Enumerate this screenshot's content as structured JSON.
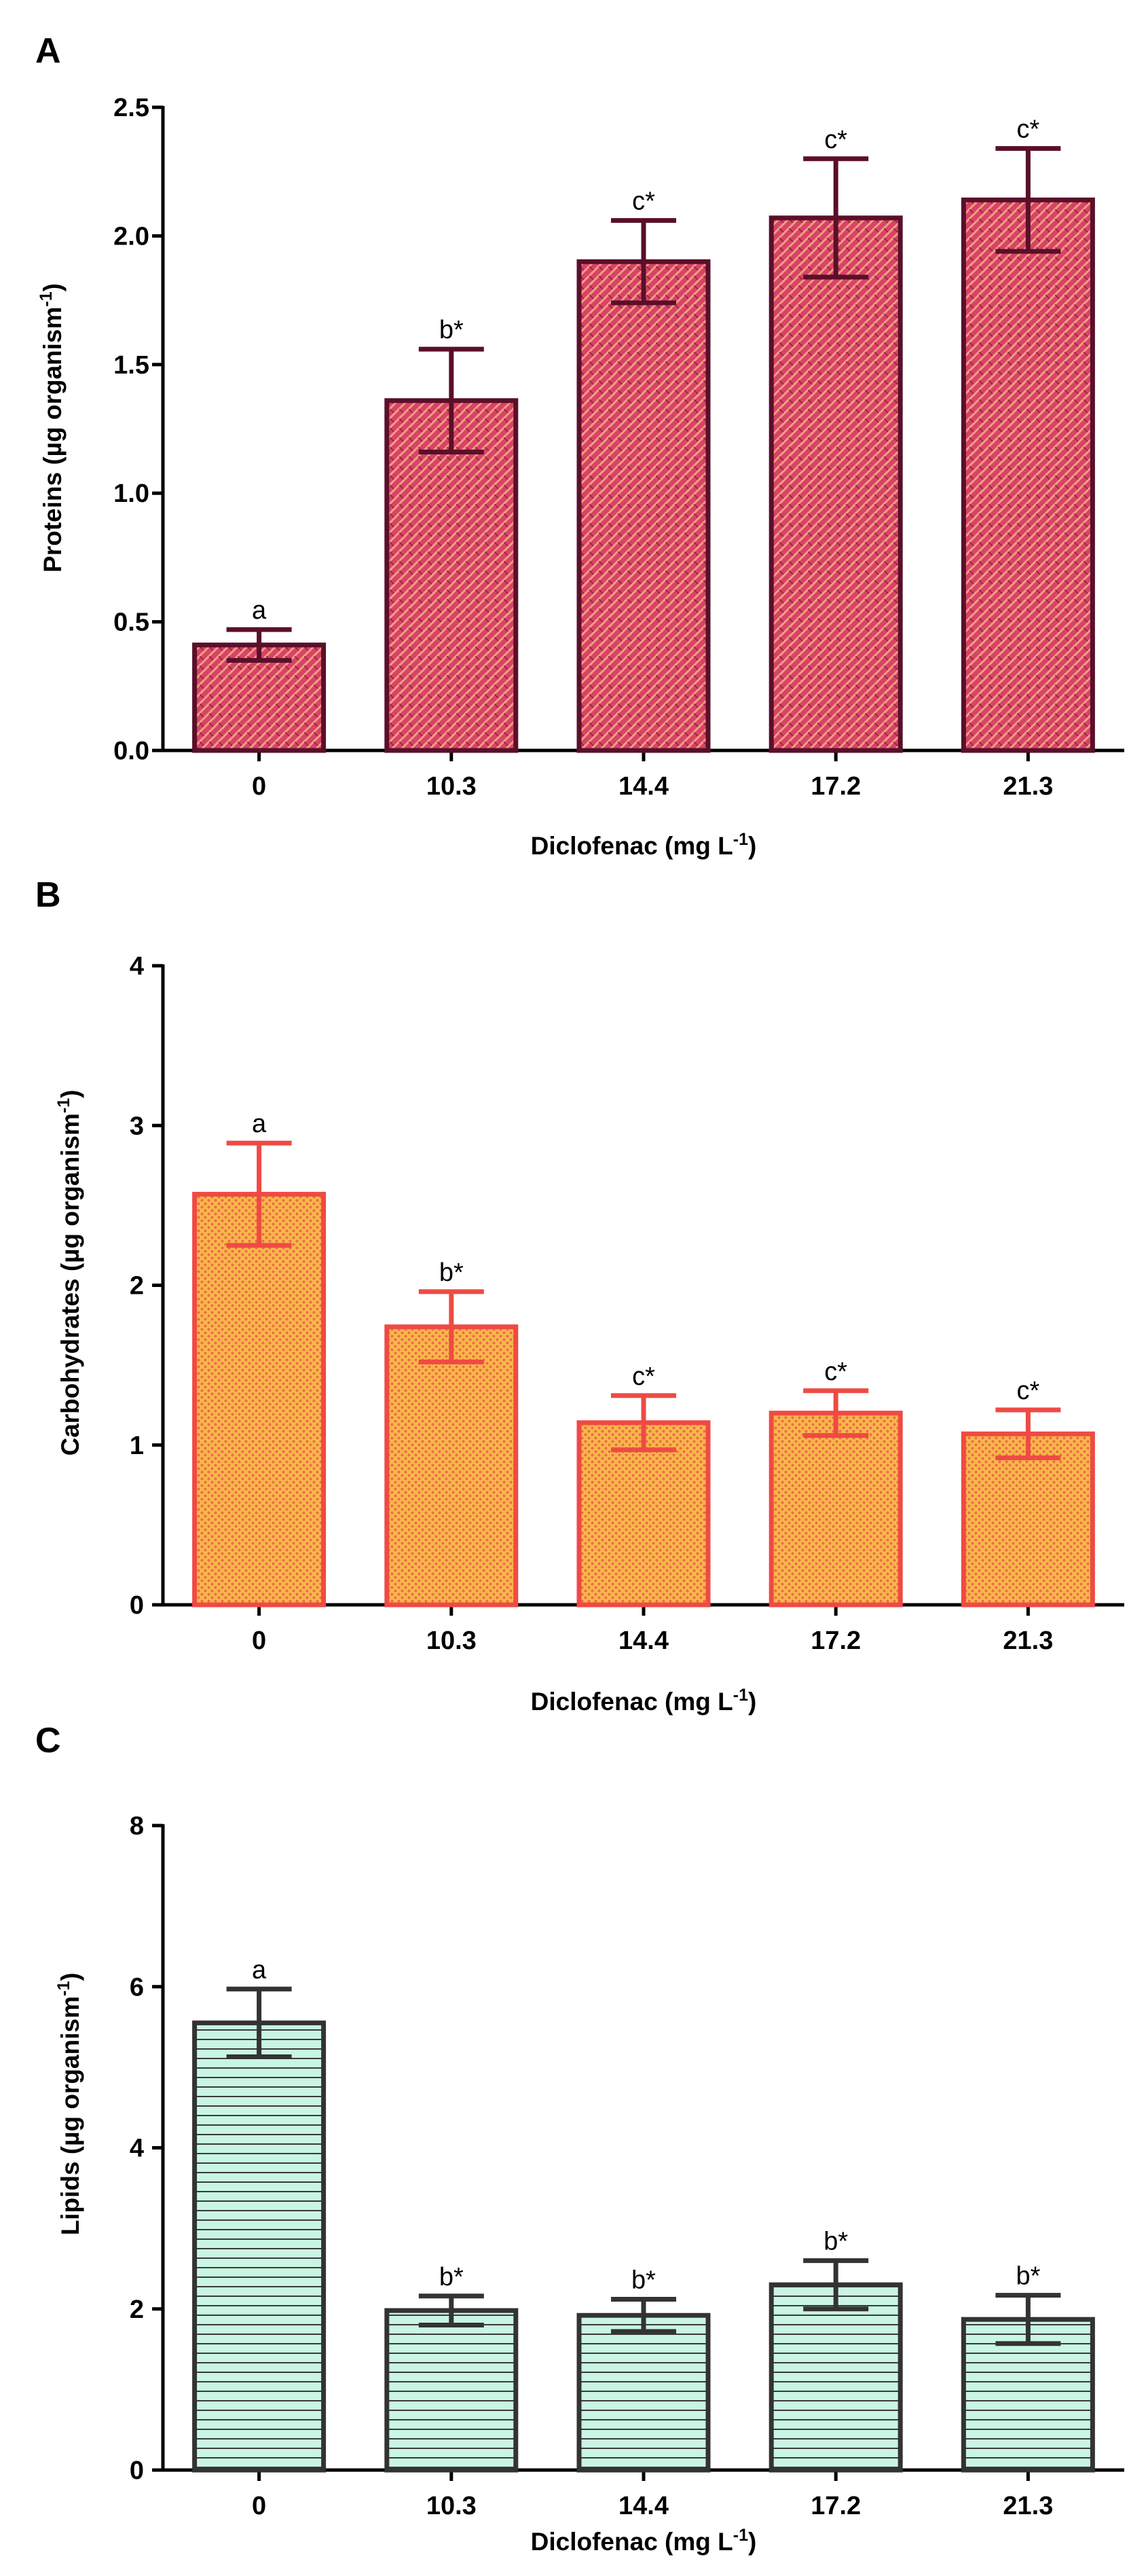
{
  "chart_data": [
    {
      "panel_label": "A",
      "type": "bar",
      "title": "",
      "xlabel": "Diclofenac (mg L",
      "xlabel_sup": "-1",
      "xlabel_tail": ")",
      "ylabel": "Proteins (µg organism",
      "ylabel_sup": "-1",
      "ylabel_tail": ")",
      "categories": [
        "0",
        "10.3",
        "14.4",
        "17.2",
        "21.3"
      ],
      "values": [
        0.41,
        1.36,
        1.9,
        2.07,
        2.14
      ],
      "errors": [
        0.06,
        0.2,
        0.16,
        0.23,
        0.2
      ],
      "annotations": [
        "a",
        "b*",
        "c*",
        "c*",
        "c*"
      ],
      "ylim": [
        0,
        2.5
      ],
      "yticks": [
        0,
        0.5,
        1.0,
        1.5,
        2.0,
        2.5
      ],
      "ytick_labels": [
        "0.0",
        "0.5",
        "1.0",
        "1.5",
        "2.0",
        "2.5"
      ],
      "style": {
        "fill": "#d9426a",
        "hatch": "#f0a07a",
        "stroke": "#5a0f2a",
        "pattern": "weave"
      }
    },
    {
      "panel_label": "B",
      "type": "bar",
      "title": "",
      "xlabel": "Diclofenac  (mg L",
      "xlabel_sup": "-1",
      "xlabel_tail": ")",
      "ylabel": "Carbohydrates (µg organism",
      "ylabel_sup": "-1",
      "ylabel_tail": ")",
      "categories": [
        "0",
        "10.3",
        "14.4",
        "17.2",
        "21.3"
      ],
      "values": [
        2.57,
        1.74,
        1.14,
        1.2,
        1.07
      ],
      "errors": [
        0.32,
        0.22,
        0.17,
        0.14,
        0.15
      ],
      "annotations": [
        "a",
        "b*",
        "c*",
        "c*",
        "c*"
      ],
      "ylim": [
        0,
        4
      ],
      "yticks": [
        0,
        1,
        2,
        3,
        4
      ],
      "ytick_labels": [
        "0",
        "1",
        "2",
        "3",
        "4"
      ],
      "style": {
        "fill": "#f7b84a",
        "hatch": "#f06a4a",
        "stroke": "#ef4a44",
        "pattern": "dots"
      }
    },
    {
      "panel_label": "C",
      "type": "bar",
      "title": "",
      "xlabel": "Diclofenac  (mg L",
      "xlabel_sup": "-1",
      "xlabel_tail": ")",
      "ylabel": "Lipids (µg organism",
      "ylabel_sup": "-1",
      "ylabel_tail": ")",
      "categories": [
        "0",
        "10.3",
        "14.4",
        "17.2",
        "21.3"
      ],
      "values": [
        5.55,
        1.98,
        1.92,
        2.3,
        1.87
      ],
      "errors": [
        0.42,
        0.18,
        0.2,
        0.3,
        0.3
      ],
      "annotations": [
        "a",
        "b*",
        "b*",
        "b*",
        "b*"
      ],
      "ylim": [
        0,
        8
      ],
      "yticks": [
        0,
        2,
        4,
        6,
        8
      ],
      "ytick_labels": [
        "0",
        "2",
        "4",
        "6",
        "8"
      ],
      "style": {
        "fill": "#c9f5e3",
        "hatch": "#3a3a3a",
        "stroke": "#333333",
        "pattern": "hlines"
      }
    }
  ]
}
